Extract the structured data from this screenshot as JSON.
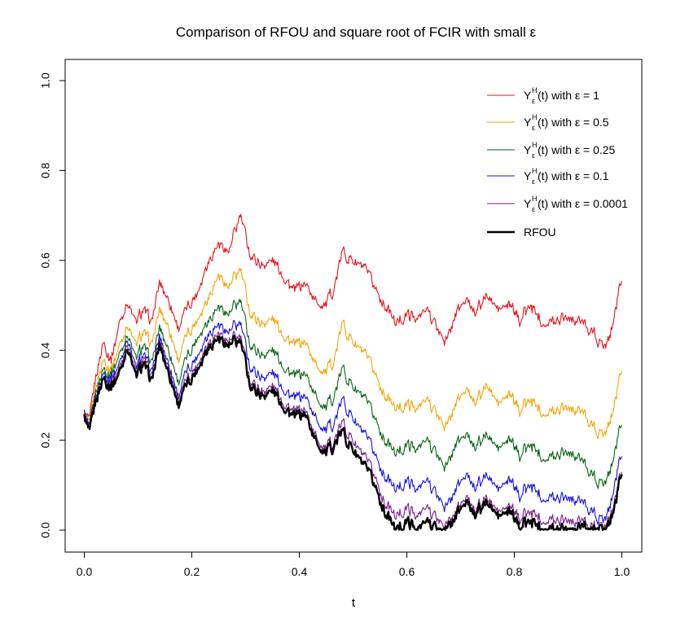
{
  "chart_data": {
    "type": "line",
    "title": "Comparison of RFOU and square root of FCIR with small ε",
    "xlabel": "t",
    "ylabel": "",
    "xlim": [
      0,
      1
    ],
    "ylim": [
      0,
      1
    ],
    "x_ticks": [
      {
        "value": 0.0,
        "label": "0.0"
      },
      {
        "value": 0.2,
        "label": "0.2"
      },
      {
        "value": 0.4,
        "label": "0.4"
      },
      {
        "value": 0.6,
        "label": "0.6"
      },
      {
        "value": 0.8,
        "label": "0.8"
      },
      {
        "value": 1.0,
        "label": "1.0"
      }
    ],
    "y_ticks": [
      {
        "value": 0.0,
        "label": "0.0"
      },
      {
        "value": 0.2,
        "label": "0.2"
      },
      {
        "value": 0.4,
        "label": "0.4"
      },
      {
        "value": 0.6,
        "label": "0.6"
      },
      {
        "value": 0.8,
        "label": "0.8"
      },
      {
        "value": 1.0,
        "label": "1.0"
      }
    ],
    "grid": false,
    "legend_position": "top-right",
    "x": [
      0.0,
      0.01,
      0.02,
      0.035,
      0.05,
      0.065,
      0.08,
      0.095,
      0.11,
      0.125,
      0.14,
      0.155,
      0.175,
      0.19,
      0.21,
      0.23,
      0.25,
      0.27,
      0.29,
      0.31,
      0.33,
      0.35,
      0.37,
      0.39,
      0.41,
      0.43,
      0.45,
      0.465,
      0.48,
      0.5,
      0.52,
      0.54,
      0.56,
      0.58,
      0.6,
      0.62,
      0.64,
      0.66,
      0.675,
      0.69,
      0.71,
      0.73,
      0.75,
      0.77,
      0.79,
      0.81,
      0.83,
      0.85,
      0.87,
      0.89,
      0.91,
      0.93,
      0.95,
      0.96,
      0.975,
      0.99,
      1.0
    ],
    "series": [
      {
        "name": "eps_1",
        "legend_main": "Y",
        "legend_sup": "H",
        "legend_sub": "ε",
        "legend_rest": "(t) with ε = 1",
        "color": "#e8141c",
        "values": [
          0.26,
          0.24,
          0.33,
          0.42,
          0.38,
          0.46,
          0.51,
          0.46,
          0.49,
          0.46,
          0.55,
          0.52,
          0.45,
          0.49,
          0.53,
          0.6,
          0.64,
          0.62,
          0.7,
          0.61,
          0.59,
          0.6,
          0.57,
          0.53,
          0.55,
          0.51,
          0.5,
          0.54,
          0.62,
          0.6,
          0.58,
          0.54,
          0.5,
          0.46,
          0.48,
          0.47,
          0.49,
          0.44,
          0.42,
          0.48,
          0.51,
          0.49,
          0.52,
          0.49,
          0.5,
          0.47,
          0.5,
          0.47,
          0.46,
          0.48,
          0.47,
          0.46,
          0.44,
          0.41,
          0.42,
          0.5,
          0.57
        ]
      },
      {
        "name": "eps_0.5",
        "legend_main": "Y",
        "legend_sup": "H",
        "legend_sub": "ε",
        "legend_rest": "(t) with ε = 0.5",
        "color": "#f5a50a",
        "values": [
          0.26,
          0.23,
          0.31,
          0.38,
          0.36,
          0.41,
          0.46,
          0.41,
          0.44,
          0.41,
          0.49,
          0.46,
          0.38,
          0.43,
          0.47,
          0.52,
          0.57,
          0.54,
          0.58,
          0.48,
          0.46,
          0.47,
          0.44,
          0.41,
          0.42,
          0.37,
          0.35,
          0.38,
          0.46,
          0.42,
          0.39,
          0.35,
          0.3,
          0.27,
          0.28,
          0.27,
          0.29,
          0.25,
          0.23,
          0.28,
          0.31,
          0.29,
          0.32,
          0.28,
          0.3,
          0.27,
          0.29,
          0.27,
          0.26,
          0.28,
          0.27,
          0.26,
          0.23,
          0.21,
          0.23,
          0.3,
          0.37
        ]
      },
      {
        "name": "eps_0.25",
        "legend_main": "Y",
        "legend_sup": "H",
        "legend_sub": "ε",
        "legend_rest": "(t) with ε = 0.25",
        "color": "#0a6614",
        "values": [
          0.26,
          0.22,
          0.3,
          0.36,
          0.35,
          0.39,
          0.44,
          0.38,
          0.41,
          0.37,
          0.45,
          0.41,
          0.33,
          0.38,
          0.43,
          0.47,
          0.5,
          0.48,
          0.51,
          0.41,
          0.39,
          0.4,
          0.37,
          0.34,
          0.35,
          0.3,
          0.27,
          0.3,
          0.36,
          0.32,
          0.29,
          0.25,
          0.2,
          0.17,
          0.19,
          0.18,
          0.2,
          0.16,
          0.14,
          0.19,
          0.21,
          0.19,
          0.21,
          0.18,
          0.2,
          0.17,
          0.19,
          0.17,
          0.16,
          0.18,
          0.17,
          0.15,
          0.12,
          0.1,
          0.12,
          0.19,
          0.25
        ]
      },
      {
        "name": "eps_0.1",
        "legend_main": "Y",
        "legend_sup": "H",
        "legend_sub": "ε",
        "legend_rest": "(t) with ε = 0.1",
        "color": "#1414e0",
        "values": [
          0.26,
          0.22,
          0.29,
          0.35,
          0.34,
          0.37,
          0.43,
          0.36,
          0.39,
          0.35,
          0.43,
          0.38,
          0.3,
          0.35,
          0.39,
          0.44,
          0.46,
          0.44,
          0.46,
          0.36,
          0.34,
          0.35,
          0.32,
          0.29,
          0.3,
          0.25,
          0.22,
          0.24,
          0.29,
          0.25,
          0.21,
          0.17,
          0.12,
          0.09,
          0.11,
          0.09,
          0.11,
          0.07,
          0.05,
          0.09,
          0.12,
          0.1,
          0.12,
          0.09,
          0.11,
          0.08,
          0.1,
          0.08,
          0.07,
          0.08,
          0.07,
          0.06,
          0.04,
          0.02,
          0.04,
          0.12,
          0.18
        ]
      },
      {
        "name": "eps_0.0001",
        "legend_main": "Y",
        "legend_sup": "H",
        "legend_sub": "ε",
        "legend_rest": "(t) with ε = 0.0001",
        "color": "#7a1e8c",
        "values": [
          0.255,
          0.215,
          0.285,
          0.34,
          0.33,
          0.36,
          0.42,
          0.35,
          0.38,
          0.34,
          0.42,
          0.37,
          0.29,
          0.33,
          0.37,
          0.42,
          0.44,
          0.42,
          0.43,
          0.33,
          0.31,
          0.32,
          0.29,
          0.26,
          0.27,
          0.21,
          0.18,
          0.2,
          0.24,
          0.2,
          0.16,
          0.12,
          0.06,
          0.03,
          0.05,
          0.03,
          0.05,
          0.02,
          0.01,
          0.04,
          0.07,
          0.05,
          0.07,
          0.04,
          0.05,
          0.03,
          0.04,
          0.03,
          0.02,
          0.03,
          0.02,
          0.02,
          0.01,
          0.005,
          0.02,
          0.08,
          0.145
        ]
      },
      {
        "name": "rfou",
        "legend_main": "RFOU",
        "legend_sup": "",
        "legend_sub": "",
        "legend_rest": "",
        "color": "#000000",
        "values": [
          0.25,
          0.21,
          0.28,
          0.34,
          0.32,
          0.35,
          0.41,
          0.34,
          0.37,
          0.33,
          0.41,
          0.36,
          0.28,
          0.32,
          0.36,
          0.41,
          0.43,
          0.41,
          0.42,
          0.32,
          0.3,
          0.31,
          0.28,
          0.25,
          0.26,
          0.2,
          0.17,
          0.19,
          0.22,
          0.18,
          0.14,
          0.1,
          0.04,
          0.0,
          0.02,
          0.0,
          0.02,
          0.0,
          0.0,
          0.03,
          0.06,
          0.04,
          0.06,
          0.03,
          0.04,
          0.01,
          0.02,
          0.01,
          0.0,
          0.01,
          0.0,
          0.01,
          0.0,
          0.0,
          0.01,
          0.07,
          0.14
        ]
      }
    ]
  }
}
